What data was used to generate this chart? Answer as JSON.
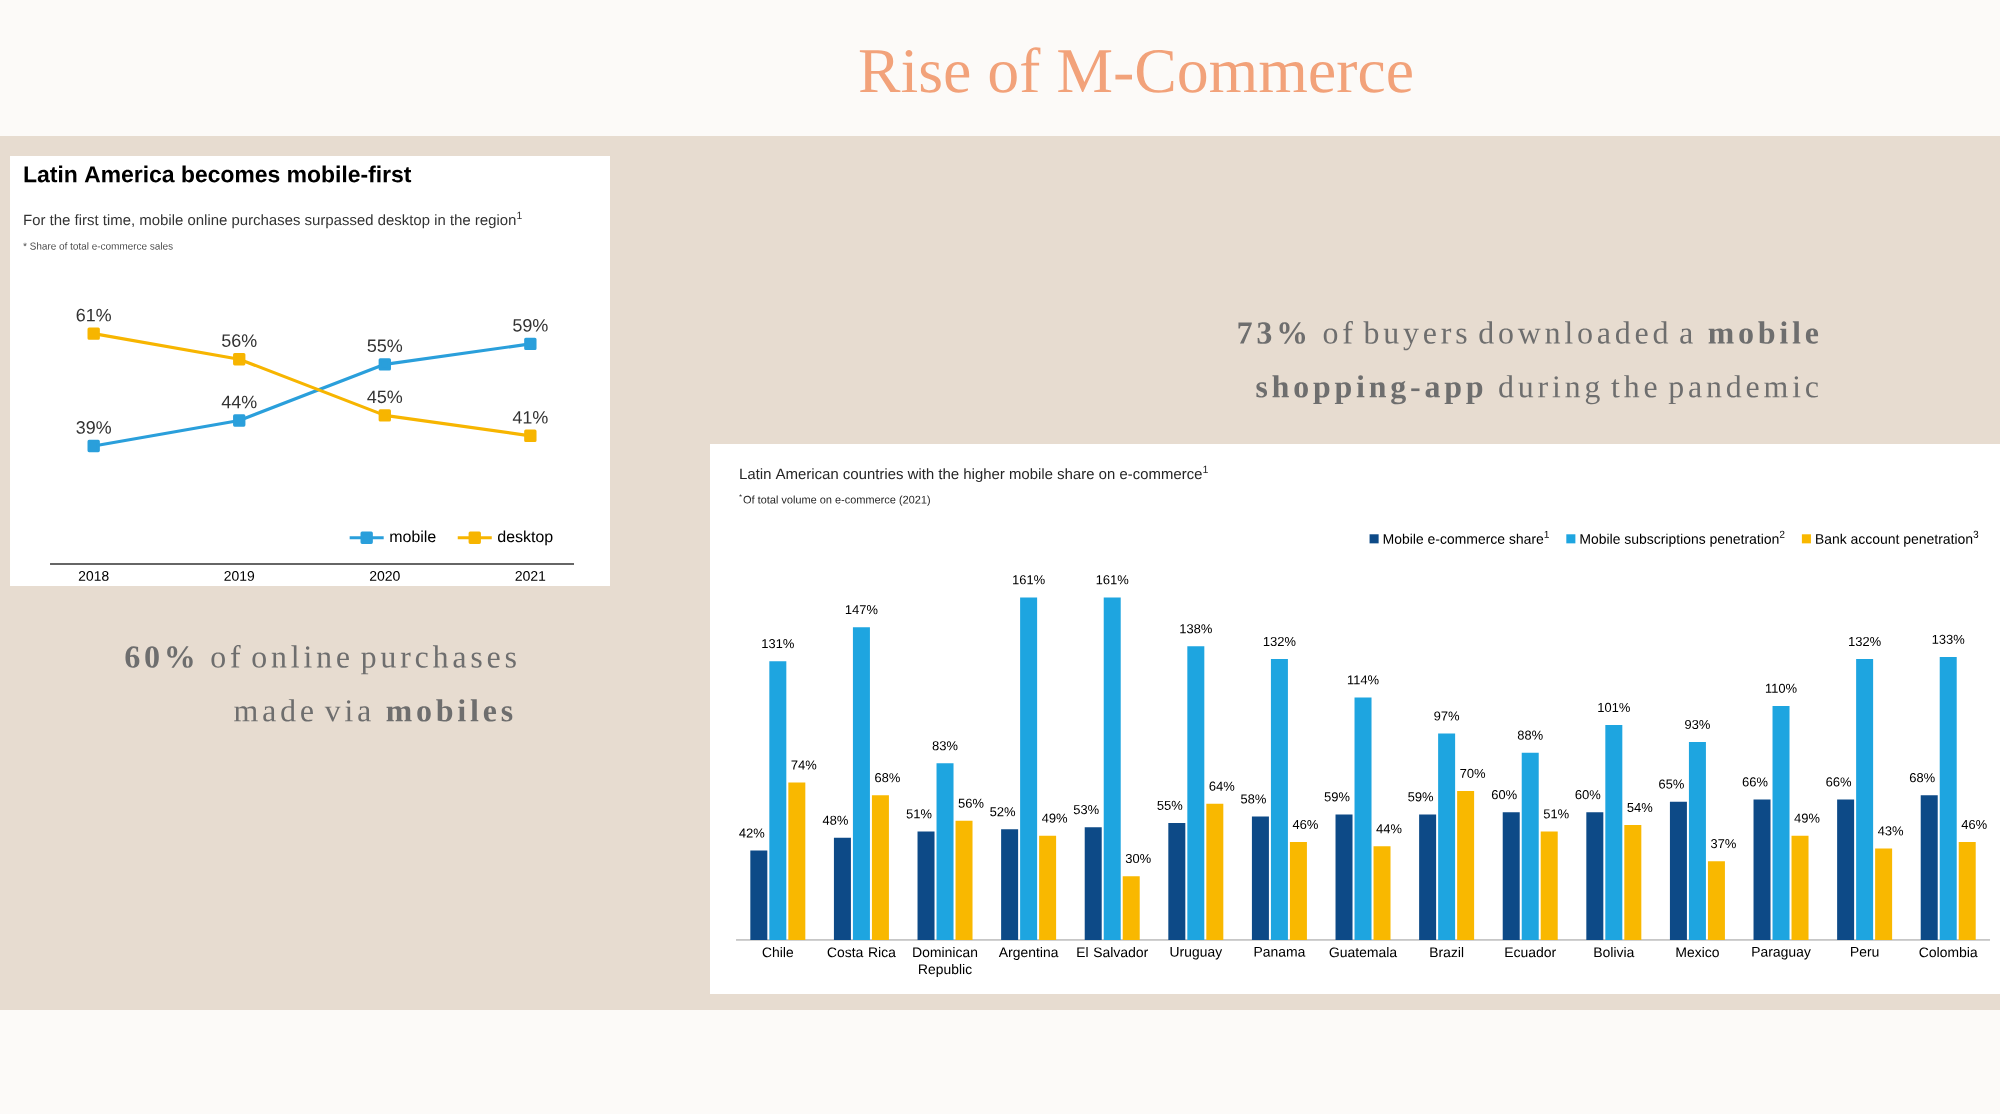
{
  "chart_data": [
    {
      "type": "line",
      "title": "Latin America becomes mobile-first",
      "subtitle": "For the first time, mobile online purchases surpassed desktop in the region$^{1}$",
      "annotations": [
        "* Share of total e-commerce sales"
      ],
      "categories": [
        "2018",
        "2019",
        "2020",
        "2021"
      ],
      "marker": "square",
      "legend": "bottom right",
      "series": [
        {
          "name": "mobile",
          "color": "#2a9fdb",
          "values": [
            39,
            44,
            55,
            59
          ],
          "value_labels": [
            "39%",
            "44%",
            "55%",
            "59%"
          ]
        },
        {
          "name": "desktop",
          "color": "#f7b500",
          "values": [
            61,
            56,
            45,
            41
          ],
          "value_labels": [
            "61%",
            "56%",
            "45%",
            "41%"
          ]
        }
      ]
    },
    {
      "type": "bar",
      "title": "Latin American countries with the higher mobile share on e-commerce$^{1}$",
      "subtitle": "$^{*}$Of total volume on e-commerce (2021)",
      "categories": [
        "Chile",
        "Costa Rica",
        "Dominican Republic",
        "Argentina",
        "El Salvador",
        "Uruguay",
        "Panama",
        "Guatemala",
        "Brazil",
        "Ecuador",
        "Bolivia",
        "Mexico",
        "Paraguay",
        "Peru",
        "Colombia"
      ],
      "legend": "top right",
      "series": [
        {
          "name": "Mobile e-commerce share$^{1}$",
          "color": "#0d4a87",
          "values": [
            42,
            48,
            51,
            52,
            53,
            55,
            58,
            59,
            59,
            60,
            60,
            65,
            66,
            66,
            68
          ],
          "value_labels": [
            "42%",
            "48%",
            "51%",
            "52%",
            "53%",
            "55%",
            "58%",
            "59%",
            "59%",
            "60%",
            "60%",
            "65%",
            "66%",
            "66%",
            "68%"
          ]
        },
        {
          "name": "Mobile subscriptions penetration$^{2}$",
          "color": "#1ea5e0",
          "values": [
            131,
            147,
            83,
            161,
            161,
            138,
            132,
            114,
            97,
            88,
            101,
            93,
            110,
            132,
            133
          ],
          "value_labels": [
            "131%",
            "147%",
            "83%",
            "161%",
            "161%",
            "138%",
            "132%",
            "114%",
            "97%",
            "88%",
            "101%",
            "93%",
            "110%",
            "132%",
            "133%"
          ]
        },
        {
          "name": "Bank account penetration$^{3}$",
          "color": "#f9b800",
          "values": [
            74,
            68,
            56,
            49,
            30,
            64,
            46,
            44,
            70,
            51,
            54,
            37,
            49,
            43,
            46
          ],
          "value_labels": [
            "74%",
            "68%",
            "56%",
            "49%",
            "30%",
            "64%",
            "46%",
            "44%",
            "70%",
            "51%",
            "54%",
            "37%",
            "49%",
            "43%",
            "46%"
          ]
        }
      ]
    },
    {
      "type": "other",
      "title": "Rise of M-Commerce",
      "annotations": [
        "**73%** of buyers downloaded a **mobile shopping-app** during the pandemic",
        "**60%** of online purchases made via **mobiles**"
      ]
    }
  ]
}
